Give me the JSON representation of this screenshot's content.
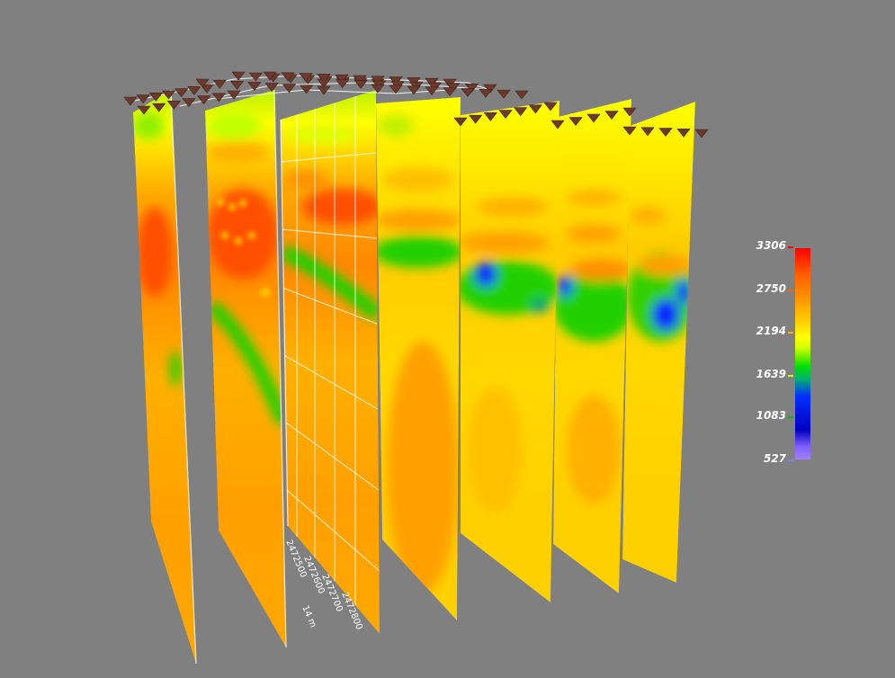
{
  "colorbar": {
    "labels": [
      "3306",
      "2750",
      "2194",
      "1639",
      "1083",
      "527"
    ],
    "tick_colors": [
      "#ff0000",
      "#ff6000",
      "#ffb000",
      "#c8ff00",
      "#00c000",
      "#9070ff"
    ]
  },
  "axis_labels": [
    "2472500",
    "2472600",
    "2472700",
    "2472800"
  ],
  "axis_unit": "14 m",
  "colors": {
    "background": "#808080",
    "marker": "#6b3a2c"
  }
}
